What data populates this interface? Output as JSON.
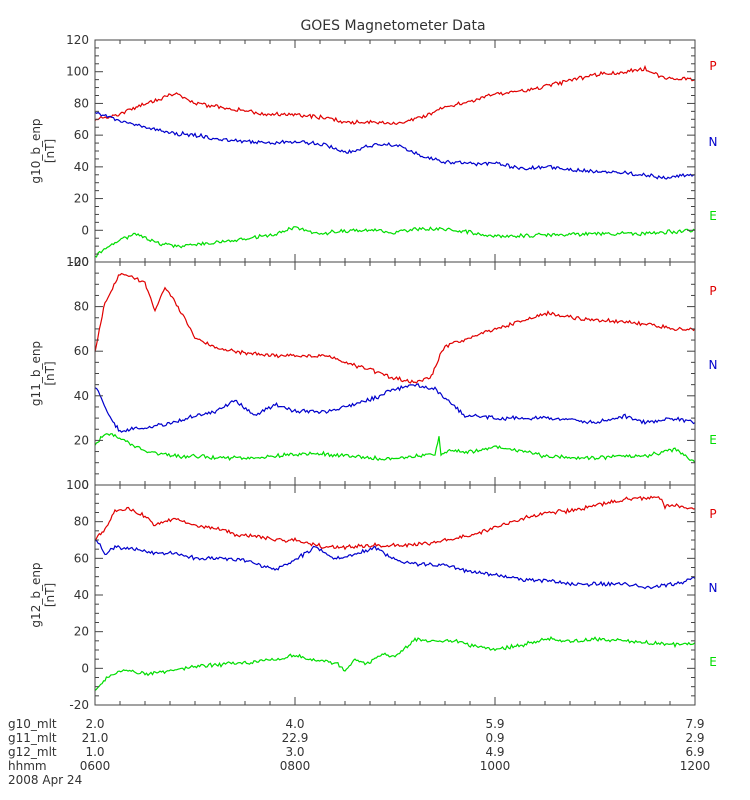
{
  "chart_data": {
    "type": "line",
    "title": "GOES Magnetometer Data",
    "colors": {
      "P": "#e00000",
      "N": "#0000cc",
      "E": "#00dd00"
    },
    "x_hours": [
      6.0,
      12.0
    ],
    "panels": [
      {
        "ylabel": "g10_b_enp",
        "unit": "[nT]",
        "ylim": [
          -20,
          120
        ],
        "yticks": [
          -20,
          0,
          20,
          40,
          60,
          80,
          100,
          120
        ],
        "series": [
          {
            "name": "P",
            "color": "#e00000",
            "x": [
              6.0,
              6.25,
              6.5,
              6.8,
              7.0,
              7.3,
              7.5,
              7.7,
              8.0,
              8.3,
              8.5,
              8.8,
              9.0,
              9.3,
              9.5,
              9.8,
              10.0,
              10.3,
              10.5,
              10.8,
              11.0,
              11.3,
              11.5,
              11.7,
              12.0
            ],
            "y": [
              70,
              73,
              80,
              86,
              80,
              77,
              76,
              73,
              73,
              71,
              68,
              68,
              67,
              72,
              78,
              82,
              86,
              88,
              91,
              95,
              98,
              100,
              102,
              96,
              95
            ]
          },
          {
            "name": "N",
            "color": "#0000cc",
            "x": [
              6.0,
              6.2,
              6.5,
              6.8,
              7.0,
              7.3,
              7.5,
              7.8,
              8.0,
              8.3,
              8.5,
              8.8,
              9.0,
              9.3,
              9.5,
              9.8,
              10.0,
              10.3,
              10.5,
              10.8,
              11.0,
              11.3,
              11.5,
              11.7,
              12.0
            ],
            "y": [
              75,
              70,
              65,
              61,
              60,
              57,
              56,
              55,
              56,
              54,
              49,
              54,
              54,
              46,
              43,
              42,
              42,
              39,
              40,
              38,
              37,
              36,
              35,
              33,
              35
            ]
          },
          {
            "name": "E",
            "color": "#00dd00",
            "x": [
              6.0,
              6.2,
              6.4,
              6.6,
              6.8,
              7.0,
              7.2,
              7.4,
              7.6,
              7.8,
              8.0,
              8.2,
              8.4,
              8.6,
              8.8,
              9.0,
              9.2,
              9.4,
              9.6,
              9.8,
              10.0,
              10.5,
              11.0,
              11.5,
              12.0
            ],
            "y": [
              -16,
              -8,
              -2,
              -8,
              -10,
              -9,
              -8,
              -6,
              -4,
              -3,
              2,
              -2,
              -1,
              0,
              0,
              -2,
              1,
              1,
              0,
              -2,
              -4,
              -3,
              -2,
              -2,
              0
            ]
          }
        ],
        "legend": [
          "P",
          "N",
          "E"
        ]
      },
      {
        "ylabel": "g11_b_enp",
        "unit": "[nT]",
        "ylim": [
          0,
          100
        ],
        "yticks": [
          0,
          20,
          40,
          60,
          80,
          100
        ],
        "series": [
          {
            "name": "P",
            "color": "#e00000",
            "x": [
              6.0,
              6.1,
              6.25,
              6.5,
              6.6,
              6.7,
              6.8,
              7.0,
              7.2,
              7.5,
              7.8,
              8.0,
              8.3,
              8.5,
              8.8,
              9.0,
              9.2,
              9.35,
              9.42,
              9.45,
              9.5,
              9.7,
              10.0,
              10.3,
              10.5,
              10.8,
              11.0,
              11.3,
              11.5,
              11.8,
              12.0
            ],
            "y": [
              60,
              82,
              95,
              91,
              78,
              89,
              82,
              66,
              62,
              59,
              58,
              58,
              58,
              55,
              51,
              48,
              46,
              48,
              54,
              58,
              62,
              65,
              70,
              74,
              77,
              75,
              74,
              73,
              72,
              70,
              70
            ]
          },
          {
            "name": "N",
            "color": "#0000cc",
            "x": [
              6.0,
              6.05,
              6.15,
              6.25,
              6.5,
              6.8,
              7.0,
              7.2,
              7.4,
              7.6,
              7.8,
              8.0,
              8.3,
              8.5,
              8.8,
              9.0,
              9.2,
              9.4,
              9.45,
              9.55,
              9.7,
              10.0,
              10.3,
              10.5,
              10.8,
              11.0,
              11.3,
              11.5,
              11.8,
              12.0
            ],
            "y": [
              44,
              40,
              30,
              24,
              26,
              28,
              31,
              33,
              38,
              31,
              36,
              33,
              33,
              35,
              39,
              43,
              45,
              43,
              41,
              37,
              31,
              30,
              30,
              30,
              29,
              28,
              31,
              28,
              30,
              28
            ]
          },
          {
            "name": "E",
            "color": "#00dd00",
            "x": [
              6.0,
              6.1,
              6.2,
              6.4,
              6.6,
              6.8,
              7.0,
              7.3,
              7.5,
              7.8,
              8.0,
              8.3,
              8.5,
              8.8,
              9.0,
              9.2,
              9.4,
              9.44,
              9.46,
              9.5,
              9.8,
              10.0,
              10.3,
              10.5,
              10.8,
              11.0,
              11.3,
              11.5,
              11.8,
              11.95,
              12.0
            ],
            "y": [
              18,
              23,
              22,
              17,
              14,
              13,
              13,
              12,
              12,
              13,
              14,
              14,
              13,
              12,
              12,
              13,
              14,
              22,
              13,
              15,
              15,
              17,
              15,
              13,
              12,
              12,
              13,
              13,
              16,
              12,
              10
            ]
          }
        ],
        "legend": [
          "P",
          "N",
          "E"
        ]
      },
      {
        "ylabel": "g12_b_enp",
        "unit": "[nT]",
        "ylim": [
          -20,
          100
        ],
        "yticks": [
          -20,
          0,
          20,
          40,
          60,
          80,
          100
        ],
        "series": [
          {
            "name": "P",
            "color": "#e00000",
            "x": [
              6.0,
              6.1,
              6.2,
              6.35,
              6.5,
              6.6,
              6.8,
              7.0,
              7.2,
              7.4,
              7.6,
              7.8,
              8.0,
              8.3,
              8.5,
              8.8,
              9.0,
              9.3,
              9.5,
              9.8,
              10.0,
              10.3,
              10.5,
              10.8,
              11.0,
              11.3,
              11.5,
              11.65,
              11.7,
              11.8,
              12.0
            ],
            "y": [
              70,
              76,
              86,
              87,
              83,
              78,
              82,
              78,
              77,
              73,
              72,
              70,
              70,
              66,
              66,
              67,
              67,
              68,
              70,
              73,
              77,
              82,
              85,
              86,
              89,
              92,
              93,
              93,
              88,
              89,
              87
            ]
          },
          {
            "name": "N",
            "color": "#0000cc",
            "x": [
              6.0,
              6.05,
              6.1,
              6.2,
              6.4,
              6.6,
              6.8,
              7.0,
              7.2,
              7.5,
              7.8,
              8.0,
              8.2,
              8.4,
              8.6,
              8.8,
              9.0,
              9.2,
              9.5,
              9.8,
              10.0,
              10.3,
              10.5,
              10.8,
              11.0,
              11.3,
              11.5,
              11.8,
              12.0
            ],
            "y": [
              70,
              68,
              62,
              66,
              65,
              63,
              63,
              60,
              60,
              59,
              54,
              59,
              66,
              60,
              62,
              66,
              59,
              57,
              56,
              52,
              51,
              48,
              48,
              46,
              46,
              46,
              44,
              46,
              49
            ]
          },
          {
            "name": "E",
            "color": "#00dd00",
            "x": [
              6.0,
              6.1,
              6.2,
              6.3,
              6.5,
              6.8,
              7.0,
              7.2,
              7.5,
              7.8,
              8.0,
              8.2,
              8.4,
              8.5,
              8.6,
              8.7,
              8.8,
              8.9,
              9.0,
              9.2,
              9.4,
              9.6,
              9.8,
              10.0,
              10.3,
              10.5,
              10.8,
              11.0,
              11.3,
              11.5,
              11.8,
              12.0
            ],
            "y": [
              -12,
              -6,
              -3,
              -1,
              -3,
              -1,
              1,
              2,
              3,
              5,
              7,
              4,
              3,
              -1,
              5,
              2,
              5,
              8,
              6,
              16,
              15,
              15,
              12,
              10,
              13,
              16,
              15,
              16,
              15,
              14,
              13,
              14
            ]
          }
        ],
        "legend": [
          "P",
          "N",
          "E"
        ]
      }
    ],
    "x_axis_rows": [
      {
        "label": "g10_mlt",
        "values": [
          "2.0",
          "4.0",
          "5.9",
          "7.9"
        ]
      },
      {
        "label": "g11_mlt",
        "values": [
          "21.0",
          "22.9",
          "0.9",
          "2.9"
        ]
      },
      {
        "label": "g12_mlt",
        "values": [
          "1.0",
          "3.0",
          "4.9",
          "6.9"
        ]
      },
      {
        "label": "hhmm",
        "values": [
          "0600",
          "0800",
          "1000",
          "1200"
        ]
      }
    ],
    "date": "2008 Apr 24",
    "grid": false
  }
}
